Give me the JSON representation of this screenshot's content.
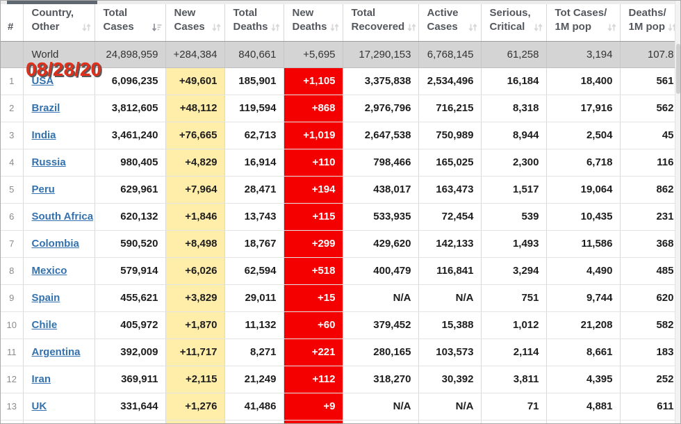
{
  "page": {
    "date_stamp": "08/28/20"
  },
  "colors": {
    "new_cases_bg": "#FFEEAA",
    "new_deaths_bg": "#F50000",
    "link_blue": "#3372AE",
    "world_row_bg": "#D4D4D4",
    "date_stamp_red": "#E0301C"
  },
  "table": {
    "columns": [
      {
        "id": "rank",
        "line1": "#",
        "line2": "",
        "sort": "none"
      },
      {
        "id": "country",
        "line1": "Country,",
        "line2": "Other",
        "sort": "both"
      },
      {
        "id": "total_cases",
        "line1": "Total",
        "line2": "Cases",
        "sort": "desc"
      },
      {
        "id": "new_cases",
        "line1": "New",
        "line2": "Cases",
        "sort": "both"
      },
      {
        "id": "total_deaths",
        "line1": "Total",
        "line2": "Deaths",
        "sort": "both"
      },
      {
        "id": "new_deaths",
        "line1": "New",
        "line2": "Deaths",
        "sort": "both"
      },
      {
        "id": "total_recovered",
        "line1": "Total",
        "line2": "Recovered",
        "sort": "both"
      },
      {
        "id": "active_cases",
        "line1": "Active",
        "line2": "Cases",
        "sort": "both"
      },
      {
        "id": "serious_critical",
        "line1": "Serious,",
        "line2": "Critical",
        "sort": "both"
      },
      {
        "id": "cases_per_1m",
        "line1": "Tot Cases/",
        "line2": "1M pop",
        "sort": "both"
      },
      {
        "id": "deaths_per_1m",
        "line1": "Deaths/",
        "line2": "1M pop",
        "sort": "both"
      }
    ],
    "world_row": {
      "country": "World",
      "total_cases": "24,898,959",
      "new_cases": "+284,384",
      "total_deaths": "840,661",
      "new_deaths": "+5,695",
      "total_recovered": "17,290,153",
      "active_cases": "6,768,145",
      "serious_critical": "61,258",
      "cases_per_1m": "3,194",
      "deaths_per_1m": "107.8"
    },
    "rows": [
      {
        "rank": "1",
        "country": "USA",
        "total_cases": "6,096,235",
        "new_cases": "+49,601",
        "total_deaths": "185,901",
        "new_deaths": "+1,105",
        "total_recovered": "3,375,838",
        "active_cases": "2,534,496",
        "serious_critical": "16,184",
        "cases_per_1m": "18,400",
        "deaths_per_1m": "561"
      },
      {
        "rank": "2",
        "country": "Brazil",
        "total_cases": "3,812,605",
        "new_cases": "+48,112",
        "total_deaths": "119,594",
        "new_deaths": "+868",
        "total_recovered": "2,976,796",
        "active_cases": "716,215",
        "serious_critical": "8,318",
        "cases_per_1m": "17,916",
        "deaths_per_1m": "562"
      },
      {
        "rank": "3",
        "country": "India",
        "total_cases": "3,461,240",
        "new_cases": "+76,665",
        "total_deaths": "62,713",
        "new_deaths": "+1,019",
        "total_recovered": "2,647,538",
        "active_cases": "750,989",
        "serious_critical": "8,944",
        "cases_per_1m": "2,504",
        "deaths_per_1m": "45"
      },
      {
        "rank": "4",
        "country": "Russia",
        "total_cases": "980,405",
        "new_cases": "+4,829",
        "total_deaths": "16,914",
        "new_deaths": "+110",
        "total_recovered": "798,466",
        "active_cases": "165,025",
        "serious_critical": "2,300",
        "cases_per_1m": "6,718",
        "deaths_per_1m": "116"
      },
      {
        "rank": "5",
        "country": "Peru",
        "total_cases": "629,961",
        "new_cases": "+7,964",
        "total_deaths": "28,471",
        "new_deaths": "+194",
        "total_recovered": "438,017",
        "active_cases": "163,473",
        "serious_critical": "1,517",
        "cases_per_1m": "19,064",
        "deaths_per_1m": "862"
      },
      {
        "rank": "6",
        "country": "South Africa",
        "total_cases": "620,132",
        "new_cases": "+1,846",
        "total_deaths": "13,743",
        "new_deaths": "+115",
        "total_recovered": "533,935",
        "active_cases": "72,454",
        "serious_critical": "539",
        "cases_per_1m": "10,435",
        "deaths_per_1m": "231"
      },
      {
        "rank": "7",
        "country": "Colombia",
        "total_cases": "590,520",
        "new_cases": "+8,498",
        "total_deaths": "18,767",
        "new_deaths": "+299",
        "total_recovered": "429,620",
        "active_cases": "142,133",
        "serious_critical": "1,493",
        "cases_per_1m": "11,586",
        "deaths_per_1m": "368"
      },
      {
        "rank": "8",
        "country": "Mexico",
        "total_cases": "579,914",
        "new_cases": "+6,026",
        "total_deaths": "62,594",
        "new_deaths": "+518",
        "total_recovered": "400,479",
        "active_cases": "116,841",
        "serious_critical": "3,294",
        "cases_per_1m": "4,490",
        "deaths_per_1m": "485"
      },
      {
        "rank": "9",
        "country": "Spain",
        "total_cases": "455,621",
        "new_cases": "+3,829",
        "total_deaths": "29,011",
        "new_deaths": "+15",
        "total_recovered": "N/A",
        "active_cases": "N/A",
        "serious_critical": "751",
        "cases_per_1m": "9,744",
        "deaths_per_1m": "620"
      },
      {
        "rank": "10",
        "country": "Chile",
        "total_cases": "405,972",
        "new_cases": "+1,870",
        "total_deaths": "11,132",
        "new_deaths": "+60",
        "total_recovered": "379,452",
        "active_cases": "15,388",
        "serious_critical": "1,012",
        "cases_per_1m": "21,208",
        "deaths_per_1m": "582"
      },
      {
        "rank": "11",
        "country": "Argentina",
        "total_cases": "392,009",
        "new_cases": "+11,717",
        "total_deaths": "8,271",
        "new_deaths": "+221",
        "total_recovered": "280,165",
        "active_cases": "103,573",
        "serious_critical": "2,114",
        "cases_per_1m": "8,661",
        "deaths_per_1m": "183"
      },
      {
        "rank": "12",
        "country": "Iran",
        "total_cases": "369,911",
        "new_cases": "+2,115",
        "total_deaths": "21,249",
        "new_deaths": "+112",
        "total_recovered": "318,270",
        "active_cases": "30,392",
        "serious_critical": "3,811",
        "cases_per_1m": "4,395",
        "deaths_per_1m": "252"
      },
      {
        "rank": "13",
        "country": "UK",
        "total_cases": "331,644",
        "new_cases": "+1,276",
        "total_deaths": "41,486",
        "new_deaths": "+9",
        "total_recovered": "N/A",
        "active_cases": "N/A",
        "serious_critical": "71",
        "cases_per_1m": "4,881",
        "deaths_per_1m": "611"
      }
    ]
  }
}
